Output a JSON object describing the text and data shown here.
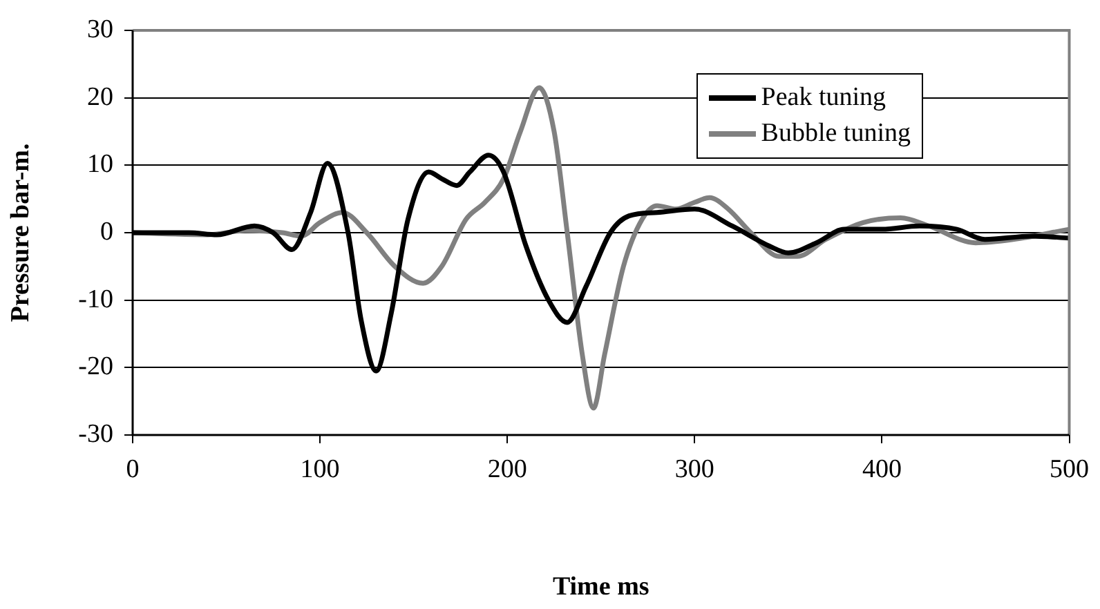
{
  "chart_data": {
    "type": "line",
    "xlabel": "Time ms",
    "ylabel": "Pressure bar-m.",
    "xlim": [
      0,
      500
    ],
    "xticks": [
      0,
      100,
      200,
      300,
      400,
      500
    ],
    "ylim": [
      -30,
      30
    ],
    "yticks": [
      -30,
      -20,
      -10,
      0,
      10,
      20,
      30
    ],
    "grid": "y",
    "legend": "top right",
    "marker": "none",
    "line_style": "solid",
    "series": [
      {
        "name": "Peak tuning",
        "color": "#000000",
        "x": [
          0,
          30,
          45,
          65,
          75,
          85,
          95,
          104,
          115,
          122,
          130,
          138,
          147,
          158,
          165,
          173,
          180,
          190,
          198,
          210,
          222,
          232,
          242,
          255,
          265,
          280,
          300,
          320,
          340,
          350,
          365,
          380,
          400,
          420,
          440,
          455,
          480,
          500
        ],
        "values": [
          0,
          0,
          -0.3,
          1,
          0,
          -2.5,
          3,
          10.3,
          0,
          -13,
          -20.5,
          -12,
          2,
          9,
          8,
          7,
          9,
          11.5,
          9,
          -2,
          -10,
          -13.3,
          -8,
          0,
          2.5,
          3,
          3.5,
          1,
          -2,
          -3,
          -1.5,
          0.5,
          0.5,
          1,
          0.5,
          -1,
          -0.5,
          -0.8
        ]
      },
      {
        "name": "Bubble tuning",
        "color": "#808080",
        "x": [
          0,
          40,
          60,
          80,
          90,
          100,
          112,
          125,
          140,
          155,
          165,
          178,
          188,
          198,
          207,
          217,
          225,
          232,
          240,
          246,
          252,
          262,
          272,
          280,
          290,
          300,
          308,
          318,
          330,
          345,
          355,
          370,
          390,
          410,
          425,
          450,
          470,
          500
        ],
        "values": [
          0,
          -0.3,
          0.3,
          0,
          -0.5,
          1.5,
          3,
          0,
          -5,
          -7.5,
          -5,
          2,
          4.5,
          8,
          15,
          21.5,
          15,
          0,
          -18,
          -26,
          -18,
          -5,
          2,
          4,
          3.5,
          4.5,
          5.2,
          3.5,
          0,
          -3.5,
          -3.5,
          -1,
          1.5,
          2.2,
          1,
          -1.5,
          -1,
          0.5
        ]
      }
    ]
  }
}
